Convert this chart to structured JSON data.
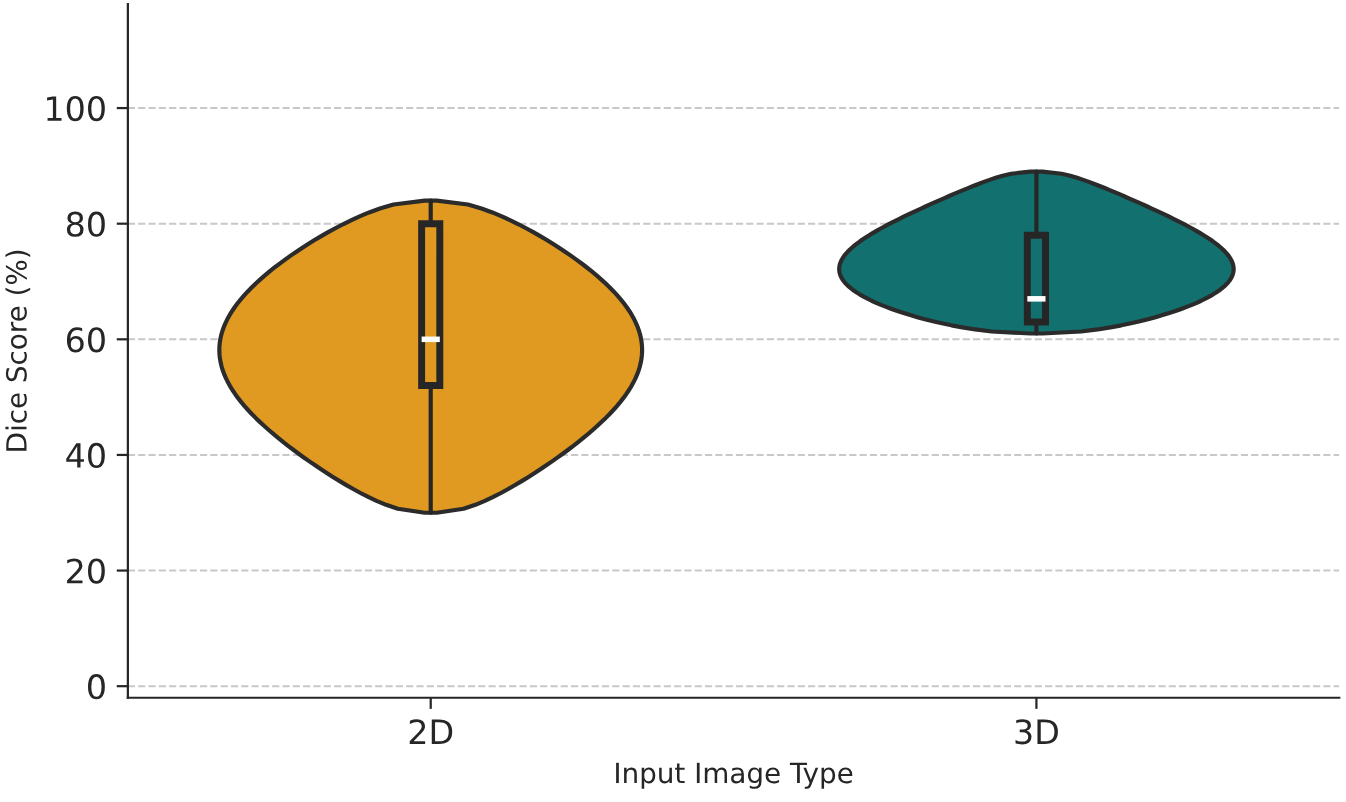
{
  "chart_data": {
    "type": "box",
    "xlabel": "Input Image Type",
    "ylabel": "Dice Score (%)",
    "categories": [
      "2D",
      "3D"
    ],
    "colors": [
      "#e09a21",
      "#12706e"
    ],
    "boxes": [
      {
        "low": 30,
        "q1": 52,
        "median": 60,
        "q3": 80,
        "high": 84
      },
      {
        "low": 61,
        "q1": 63,
        "median": 67,
        "q3": 78,
        "high": 89
      }
    ],
    "ylim": [
      -2,
      118
    ],
    "yticks": [
      0,
      20,
      40,
      60,
      80,
      100
    ],
    "grid": "y"
  }
}
